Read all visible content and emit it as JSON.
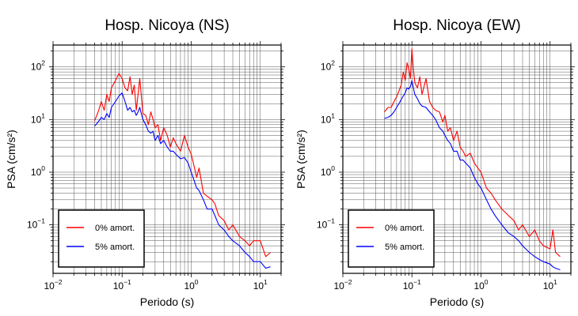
{
  "chart_data": [
    {
      "type": "line",
      "title": "Hosp. Nicoya (NS)",
      "xlabel": "Periodo (s)",
      "ylabel": "PSA (cm/s²)",
      "xscale": "log",
      "yscale": "log",
      "xlim": [
        0.01,
        20
      ],
      "ylim": [
        0.012,
        260
      ],
      "xticks": [
        {
          "base": "10",
          "exp": "−2",
          "value": 0.01
        },
        {
          "base": "10",
          "exp": "−1",
          "value": 0.1
        },
        {
          "base": "10",
          "exp": "0",
          "value": 1
        },
        {
          "base": "10",
          "exp": "1",
          "value": 10
        }
      ],
      "yticks": [
        {
          "base": "10",
          "exp": "−1",
          "value": 0.1
        },
        {
          "base": "10",
          "exp": "0",
          "value": 1
        },
        {
          "base": "10",
          "exp": "1",
          "value": 10
        },
        {
          "base": "10",
          "exp": "2",
          "value": 100
        }
      ],
      "grid": true,
      "legend_position": "bottom-left",
      "series": [
        {
          "name": "0% amort.",
          "color": "#ff0000",
          "x": [
            0.04,
            0.045,
            0.05,
            0.055,
            0.06,
            0.065,
            0.07,
            0.08,
            0.09,
            0.1,
            0.11,
            0.12,
            0.13,
            0.14,
            0.15,
            0.16,
            0.17,
            0.18,
            0.2,
            0.22,
            0.24,
            0.26,
            0.28,
            0.3,
            0.33,
            0.36,
            0.4,
            0.45,
            0.5,
            0.55,
            0.6,
            0.7,
            0.8,
            0.9,
            1.0,
            1.1,
            1.2,
            1.3,
            1.5,
            1.7,
            2.0,
            2.2,
            2.5,
            3.0,
            3.5,
            4.0,
            5.0,
            6.0,
            7.0,
            8.0,
            10.0,
            12.0,
            14.0
          ],
          "values": [
            9.5,
            14,
            22,
            15,
            30,
            22,
            40,
            55,
            75,
            60,
            40,
            35,
            65,
            30,
            45,
            15,
            30,
            60,
            13,
            12,
            8,
            14,
            10,
            7,
            8,
            4,
            7,
            5,
            3,
            4.5,
            3.5,
            2.5,
            5,
            3,
            2.2,
            1.3,
            0.8,
            1.2,
            0.4,
            0.35,
            0.3,
            0.25,
            0.15,
            0.12,
            0.08,
            0.1,
            0.06,
            0.05,
            0.04,
            0.05,
            0.05,
            0.025,
            0.03
          ]
        },
        {
          "name": "5% amort.",
          "color": "#0000ff",
          "x": [
            0.04,
            0.045,
            0.05,
            0.055,
            0.06,
            0.065,
            0.07,
            0.08,
            0.09,
            0.1,
            0.11,
            0.12,
            0.13,
            0.14,
            0.15,
            0.16,
            0.17,
            0.18,
            0.2,
            0.22,
            0.24,
            0.26,
            0.28,
            0.3,
            0.33,
            0.36,
            0.4,
            0.45,
            0.5,
            0.55,
            0.6,
            0.7,
            0.8,
            0.9,
            1.0,
            1.1,
            1.2,
            1.3,
            1.5,
            1.7,
            2.0,
            2.2,
            2.5,
            3.0,
            3.5,
            4.0,
            5.0,
            6.0,
            7.0,
            8.0,
            10.0,
            12.0,
            14.0
          ],
          "values": [
            7.5,
            9,
            11,
            10,
            13,
            11,
            17,
            22,
            28,
            32,
            22,
            15,
            17,
            14,
            15,
            12,
            14,
            17,
            10,
            8,
            6,
            5.5,
            6,
            4,
            5,
            3.5,
            4,
            3,
            2.5,
            2.5,
            2.2,
            1.8,
            1.9,
            1.5,
            1.0,
            0.7,
            0.5,
            0.45,
            0.3,
            0.2,
            0.2,
            0.15,
            0.1,
            0.08,
            0.06,
            0.05,
            0.04,
            0.03,
            0.025,
            0.02,
            0.02,
            0.015,
            0.016
          ]
        }
      ]
    },
    {
      "type": "line",
      "title": "Hosp. Nicoya (EW)",
      "xlabel": "Periodo (s)",
      "ylabel": "PSA (cm/s²)",
      "xscale": "log",
      "yscale": "log",
      "xlim": [
        0.01,
        20
      ],
      "ylim": [
        0.012,
        260
      ],
      "xticks": [
        {
          "base": "10",
          "exp": "−2",
          "value": 0.01
        },
        {
          "base": "10",
          "exp": "−1",
          "value": 0.1
        },
        {
          "base": "10",
          "exp": "0",
          "value": 1
        },
        {
          "base": "10",
          "exp": "1",
          "value": 10
        }
      ],
      "yticks": [
        {
          "base": "10",
          "exp": "−1",
          "value": 0.1
        },
        {
          "base": "10",
          "exp": "0",
          "value": 1
        },
        {
          "base": "10",
          "exp": "1",
          "value": 10
        },
        {
          "base": "10",
          "exp": "2",
          "value": 100
        }
      ],
      "grid": true,
      "legend_position": "bottom-left",
      "series": [
        {
          "name": "0% amort.",
          "color": "#ff0000",
          "x": [
            0.04,
            0.045,
            0.05,
            0.055,
            0.06,
            0.065,
            0.07,
            0.075,
            0.08,
            0.085,
            0.09,
            0.095,
            0.1,
            0.105,
            0.11,
            0.12,
            0.13,
            0.14,
            0.16,
            0.18,
            0.2,
            0.22,
            0.25,
            0.28,
            0.3,
            0.33,
            0.36,
            0.4,
            0.45,
            0.5,
            0.55,
            0.6,
            0.7,
            0.8,
            0.9,
            1.0,
            1.2,
            1.4,
            1.6,
            2.0,
            2.5,
            3.0,
            3.5,
            4.0,
            5.0,
            6.0,
            7.0,
            8.0,
            10.0,
            11.0,
            12.0,
            14.0
          ],
          "values": [
            14,
            17,
            17,
            22,
            27,
            35,
            45,
            80,
            55,
            120,
            90,
            60,
            220,
            90,
            50,
            40,
            65,
            30,
            60,
            22,
            17,
            15,
            14,
            9,
            12,
            6,
            7,
            4,
            6,
            3,
            2.5,
            2.0,
            2.3,
            1.5,
            1.2,
            1.0,
            0.5,
            0.4,
            0.3,
            0.2,
            0.15,
            0.12,
            0.08,
            0.1,
            0.06,
            0.08,
            0.05,
            0.04,
            0.035,
            0.08,
            0.03,
            0.025
          ]
        },
        {
          "name": "5% amort.",
          "color": "#0000ff",
          "x": [
            0.04,
            0.045,
            0.05,
            0.055,
            0.06,
            0.065,
            0.07,
            0.075,
            0.08,
            0.085,
            0.09,
            0.095,
            0.1,
            0.105,
            0.11,
            0.12,
            0.13,
            0.14,
            0.16,
            0.18,
            0.2,
            0.22,
            0.25,
            0.28,
            0.3,
            0.33,
            0.36,
            0.4,
            0.45,
            0.5,
            0.55,
            0.6,
            0.7,
            0.8,
            0.9,
            1.0,
            1.2,
            1.4,
            1.6,
            2.0,
            2.5,
            3.0,
            3.5,
            4.0,
            5.0,
            6.0,
            7.0,
            8.0,
            10.0,
            11.0,
            12.0,
            14.0
          ],
          "values": [
            10.5,
            11,
            12,
            14,
            17,
            20,
            24,
            28,
            32,
            40,
            38,
            42,
            55,
            40,
            30,
            25,
            20,
            18,
            17,
            14,
            12,
            10,
            7,
            6,
            5,
            4,
            3.5,
            2.5,
            2.5,
            1.7,
            1.7,
            1.5,
            1.2,
            0.8,
            0.6,
            0.5,
            0.3,
            0.2,
            0.15,
            0.1,
            0.07,
            0.06,
            0.05,
            0.04,
            0.03,
            0.025,
            0.022,
            0.02,
            0.018,
            0.016,
            0.015,
            0.014
          ]
        }
      ]
    }
  ]
}
